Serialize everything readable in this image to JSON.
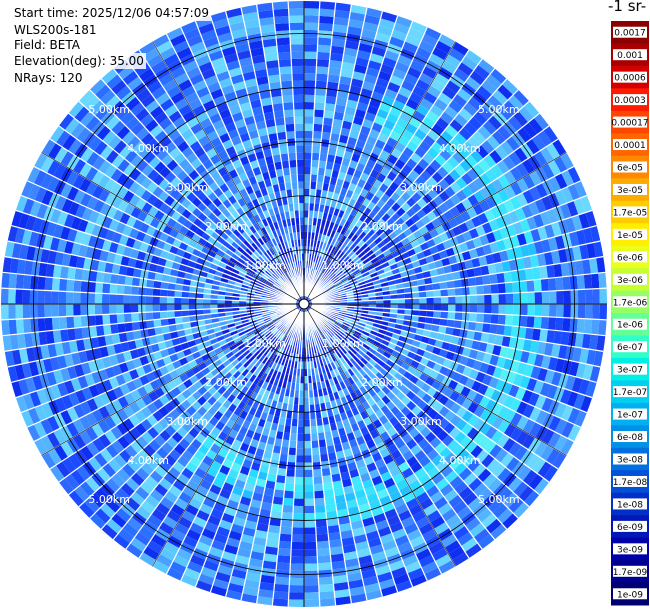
{
  "header": {
    "start_time": "Start time: 2025/12/06 04:57:09",
    "instrument": "WLS200s-181",
    "field": "Field: BETA",
    "elevation": "Elevation(deg): 35.00",
    "nrays": "NRays: 120"
  },
  "colorbar_title": "-1 sr-",
  "chart_data": {
    "type": "heatmap",
    "subtype": "polar-ppi",
    "field": "BETA",
    "n_rays": 120,
    "elevation_deg": 35.0,
    "range_rings_km": [
      1,
      2,
      3,
      4,
      5
    ],
    "range_max_km": 5.6,
    "ring_labels": [
      "1.00km",
      "2.00km",
      "3.00km",
      "4.00km",
      "5.00km"
    ],
    "colorbar_ticks": [
      "0.0017",
      "0.001",
      "0.0006",
      "0.0003",
      "0.00017",
      "0.0001",
      "6e-05",
      "3e-05",
      "1.7e-05",
      "1e-05",
      "6e-06",
      "3e-06",
      "1.7e-06",
      "1e-06",
      "6e-07",
      "3e-07",
      "1.7e-07",
      "1e-07",
      "6e-08",
      "3e-08",
      "1.7e-08",
      "1e-08",
      "6e-09",
      "3e-09",
      "1.7e-09",
      "1e-09"
    ],
    "colorbar_colors": [
      "#8b0000",
      "#a80000",
      "#d40000",
      "#ff1a00",
      "#ff4500",
      "#ff6600",
      "#ff8800",
      "#ffaa00",
      "#ffcc00",
      "#ffee00",
      "#eaff1a",
      "#c8ff32",
      "#96ff64",
      "#64ff96",
      "#32ffc8",
      "#00f0e6",
      "#00d0f0",
      "#00b0f0",
      "#0090e8",
      "#0070e0",
      "#0050d8",
      "#0030c8",
      "#0018b8",
      "#0000a8",
      "#000090",
      "#000070"
    ],
    "colorbar_scale": "log",
    "grid": true,
    "summary": {
      "dominant_range_1e-08_to_3e-08": "most bins, inner and outer area",
      "arc_enhancement": "arc of 1e-07 to 6e-08 between about 3 and 4.5 km to the east/north-east and south-east"
    }
  }
}
